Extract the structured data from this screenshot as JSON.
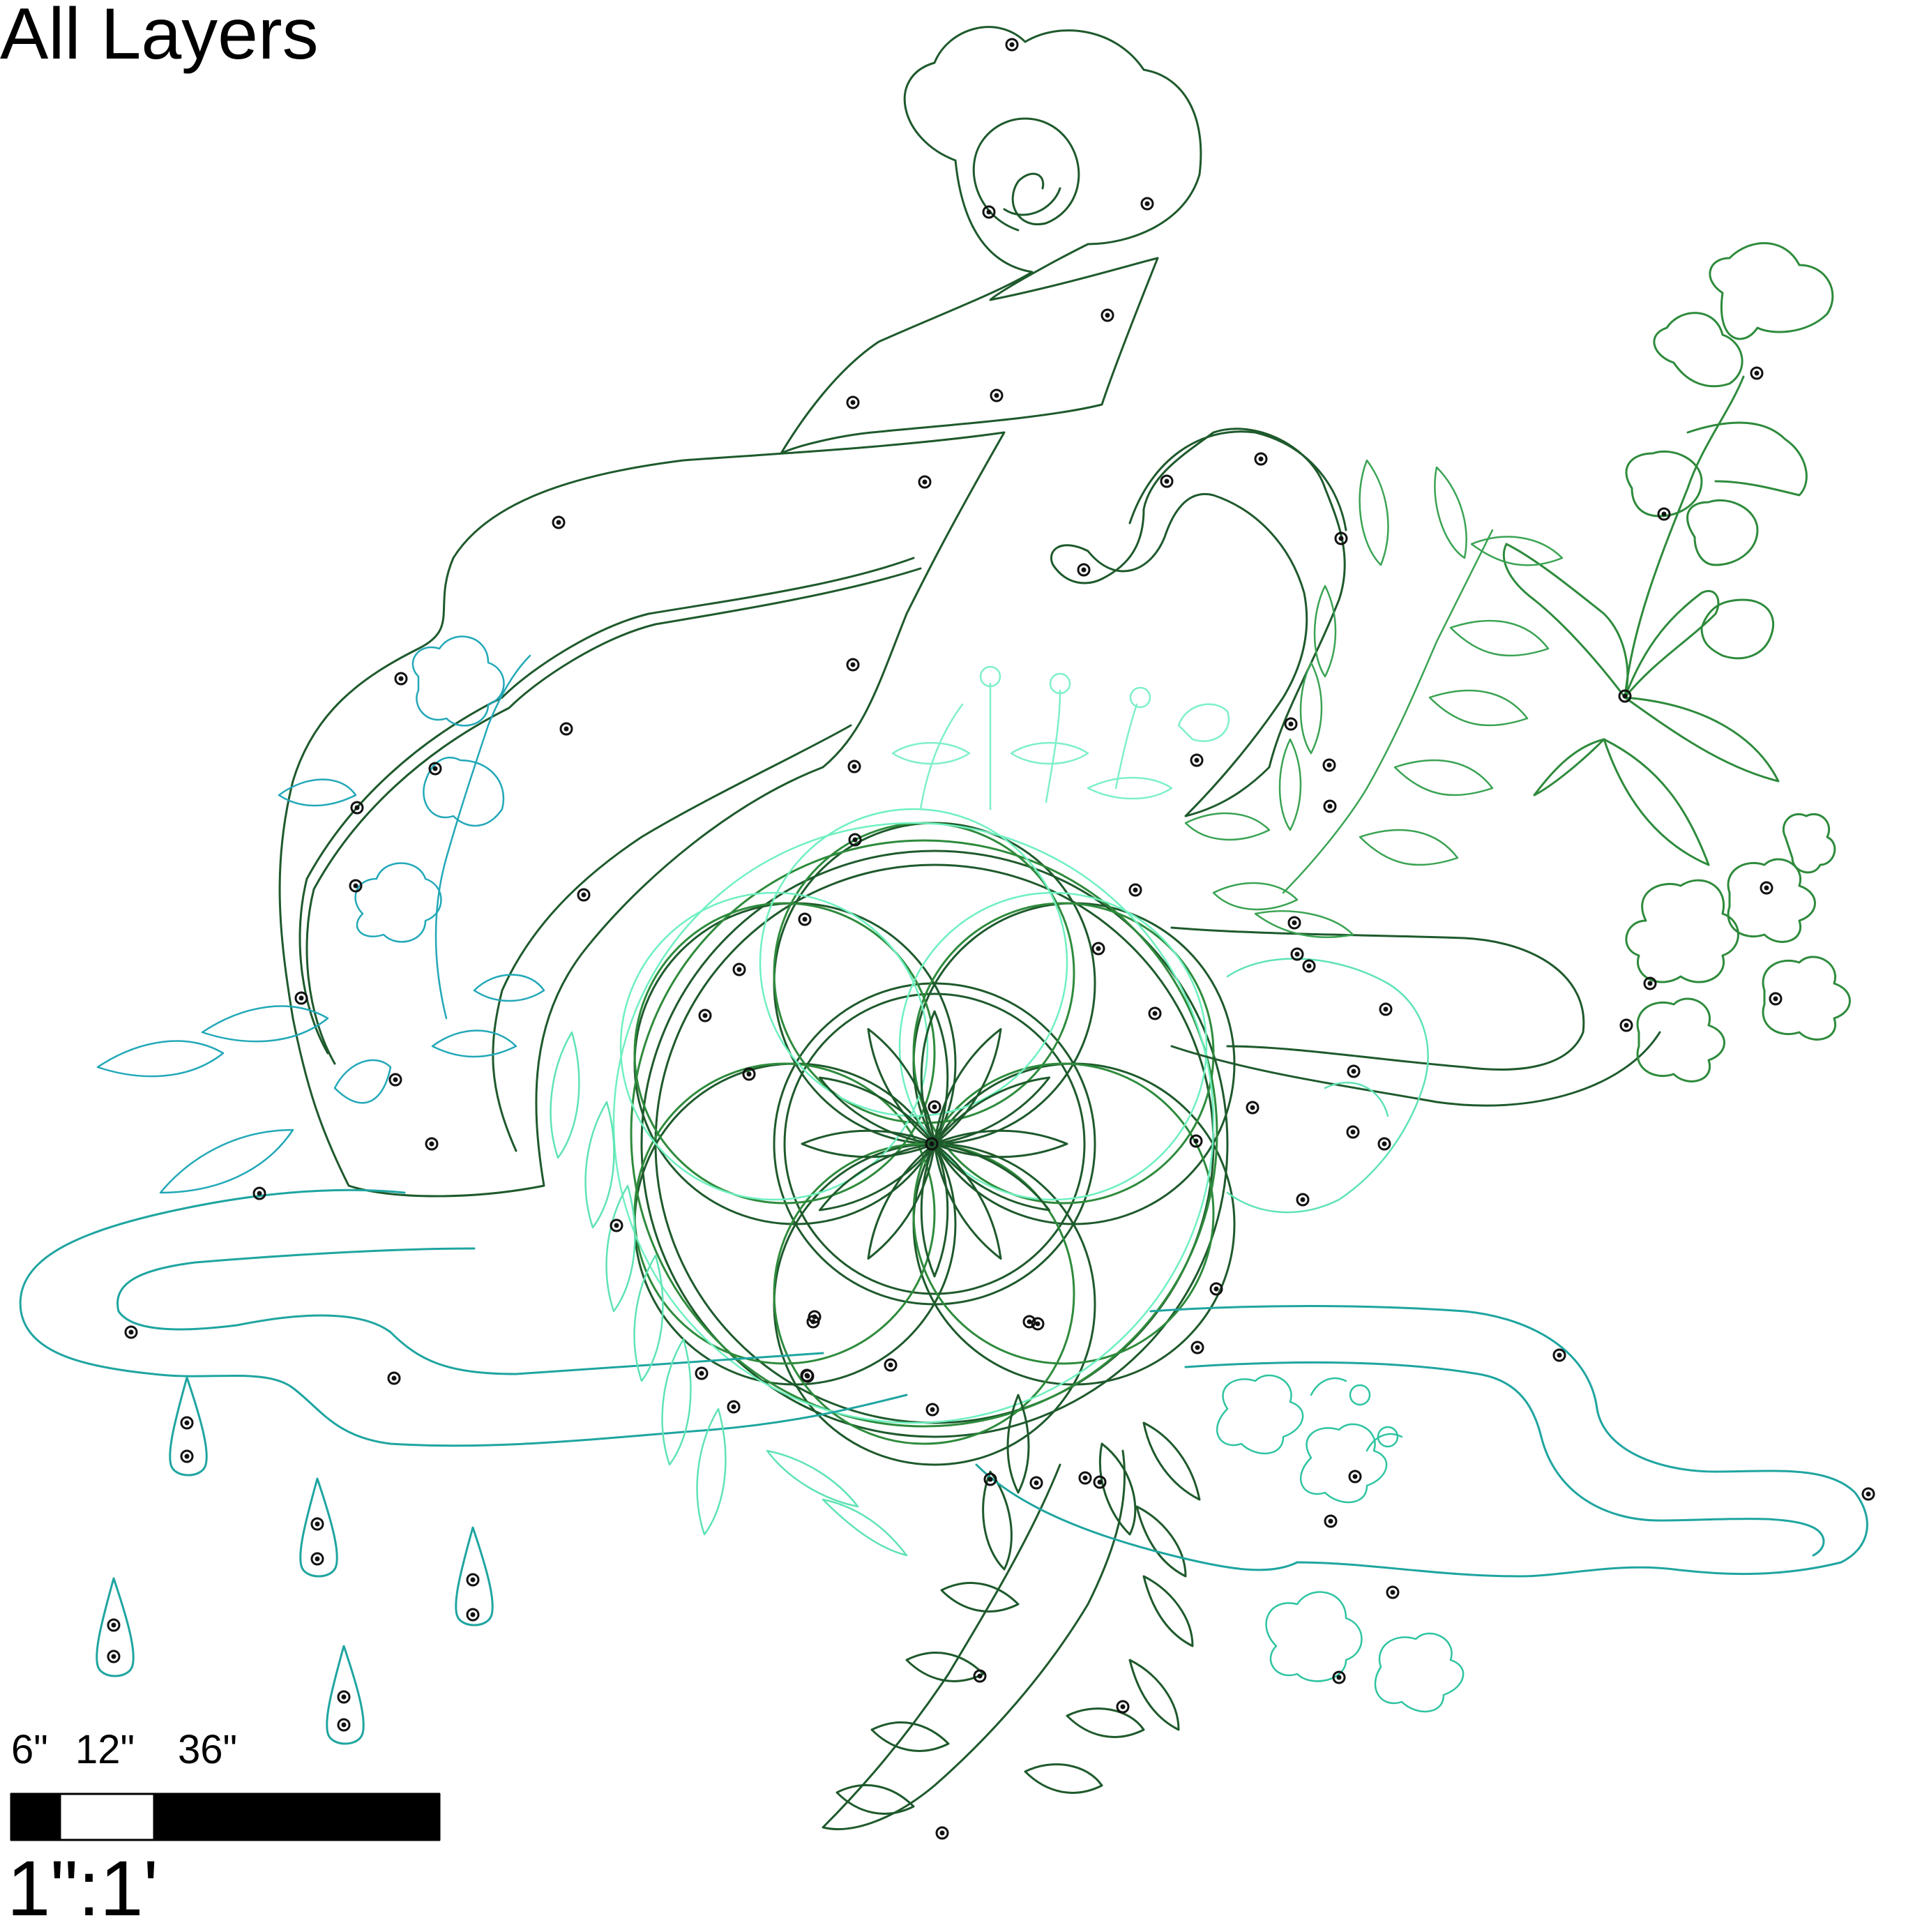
{
  "title": "All Layers",
  "scale_bar": {
    "ticks": [
      "6\"",
      "12\"",
      "36\""
    ],
    "ratio": "1\":1'"
  },
  "layer_colors": {
    "dark_green": "#1e5a2c",
    "green": "#2e8b3c",
    "mid_green": "#3aa353",
    "teal": "#1fa5a0",
    "cyan": "#2ab4c4",
    "mint": "#5fe3b4",
    "light_mint": "#7ff0c8",
    "marker": "#111111"
  }
}
